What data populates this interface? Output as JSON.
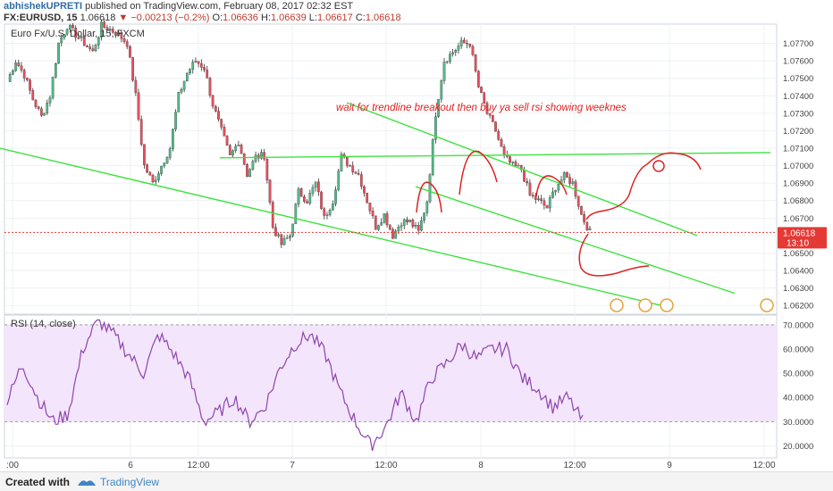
{
  "header": {
    "author": "abhishekUPRETI",
    "published": "published on TradingView.com, February 08, 2017 02:32 EST",
    "symbol": "FX:EURUSD, 15",
    "last": "1.06618",
    "change": "−0.00213 (−0.2%)",
    "open_label": "O:",
    "open": "1.06636",
    "high_label": "H:",
    "high": "1.06639",
    "low_label": "L:",
    "low": "1.06617",
    "close_label": "C:",
    "close": "1.06618"
  },
  "chart_data": [
    {
      "type": "candlestick",
      "title": "Euro Fx/U.S. Dollar, 15, FXCM",
      "annotation": "wait for trendline breakout then buy ya sell rsi showing weeknes",
      "ylim": [
        1.0615,
        1.0781
      ],
      "y_ticks": [
        "1.07700",
        "1.07600",
        "1.07500",
        "1.07400",
        "1.07300",
        "1.07200",
        "1.07100",
        "1.07000",
        "1.06900",
        "1.06800",
        "1.06700",
        "1.06600",
        "1.06500",
        "1.06400",
        "1.06300",
        "1.06200"
      ],
      "x_ticks": [
        ":00",
        "6",
        "12:00",
        "7",
        "12:00",
        "8",
        "12:00",
        "9",
        "12:00"
      ],
      "last_price_label": "1.06618",
      "countdown_label": "13:10",
      "colors": {
        "up": "#53b987",
        "down": "#eb4d5c",
        "trend": "#3ee23e",
        "drawing": "#e02020",
        "last": "#e53935"
      },
      "close_path": [
        1.0748,
        1.076,
        1.0752,
        1.0738,
        1.0728,
        1.074,
        1.077,
        1.078,
        1.0775,
        1.077,
        1.0765,
        1.078,
        1.0778,
        1.0775,
        1.077,
        1.074,
        1.07,
        1.069,
        1.07,
        1.071,
        1.074,
        1.0753,
        1.076,
        1.0756,
        1.0735,
        1.072,
        1.0705,
        1.0714,
        1.0695,
        1.0705,
        1.0706,
        1.0665,
        1.0655,
        1.066,
        1.0685,
        1.068,
        1.069,
        1.067,
        1.068,
        1.0705,
        1.07,
        1.0695,
        1.068,
        1.0665,
        1.0672,
        1.066,
        1.0668,
        1.0668,
        1.0662,
        1.068,
        1.073,
        1.076,
        1.0765,
        1.077,
        1.077,
        1.0745,
        1.073,
        1.072,
        1.0705,
        1.07,
        1.0698,
        1.0683,
        1.068,
        1.0676,
        1.0688,
        1.0694,
        1.069,
        1.0672,
        1.0662
      ],
      "trendlines_price": [
        [
          [
            0,
            1.071
          ],
          [
            740,
            1.062
          ]
        ],
        [
          [
            246,
            1.07045
          ],
          [
            862,
            1.07075
          ]
        ],
        [
          [
            388,
            1.0736
          ],
          [
            780,
            1.066
          ]
        ],
        [
          [
            465,
            1.0688
          ],
          [
            822,
            1.0627
          ]
        ]
      ]
    },
    {
      "type": "line",
      "title": "RSI (14, close)",
      "ylim": [
        15,
        74
      ],
      "y_ticks": [
        "70.0000",
        "60.0000",
        "50.0000",
        "40.0000",
        "30.0000",
        "20.0000"
      ],
      "band": [
        30,
        70
      ],
      "rsi_path": [
        38,
        54,
        40,
        30,
        33,
        60,
        72,
        66,
        58,
        50,
        66,
        58,
        48,
        30,
        34,
        40,
        30,
        36,
        52,
        62,
        66,
        58,
        42,
        30,
        20,
        28,
        42,
        30,
        48,
        54,
        62,
        56,
        60,
        60,
        48,
        44,
        36,
        40,
        30
      ]
    }
  ],
  "footer": {
    "created": "Created with",
    "brand": "TradingView"
  }
}
